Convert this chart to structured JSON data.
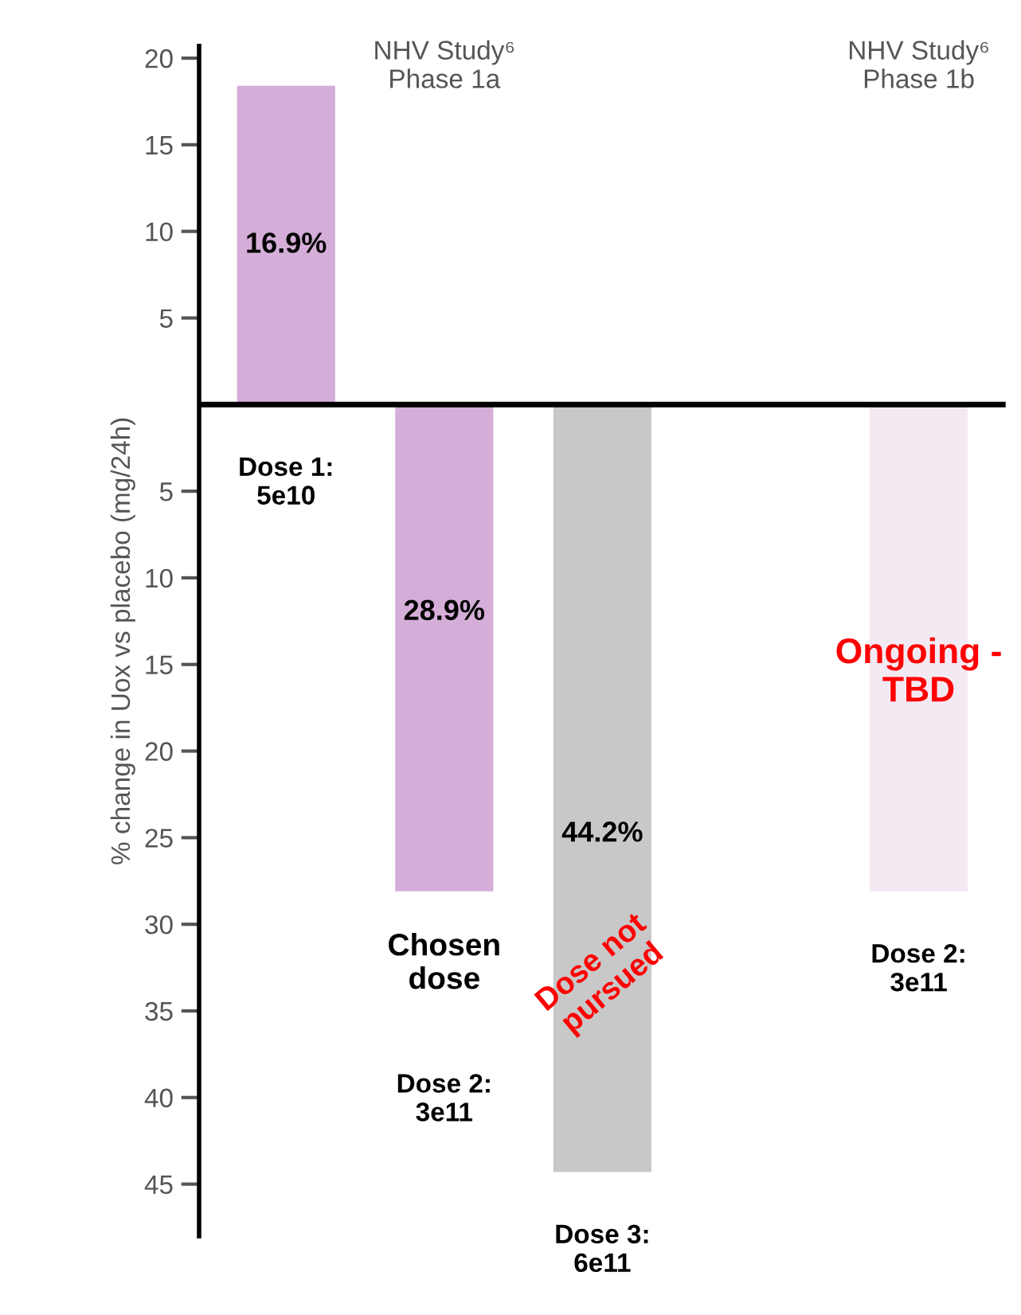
{
  "chart_data": {
    "type": "bar",
    "ylabel": "% change in Uox vs placebo (mg/24h)",
    "categories": [
      "Dose 1:\n5e10",
      "Dose 2:\n3e11",
      "Dose 3:\n6e11",
      null,
      "Dose 2:\n3e11"
    ],
    "values": [
      18.4,
      -28.1,
      -44.3,
      null,
      -28.1
    ],
    "colors": [
      "#d4aed8",
      "#d4aed8",
      "#c8c8c8",
      null,
      "#f3e9f3"
    ],
    "ylim": [
      -48,
      20.7
    ],
    "yticks": [
      {
        "value": -45,
        "label": "45"
      },
      {
        "value": -40,
        "label": "40"
      },
      {
        "value": -35,
        "label": "35"
      },
      {
        "value": -30,
        "label": "30"
      },
      {
        "value": -25,
        "label": "25"
      },
      {
        "value": -20,
        "label": "20"
      },
      {
        "value": -15,
        "label": "15"
      },
      {
        "value": -10,
        "label": "10"
      },
      {
        "value": -5,
        "label": "5"
      },
      5,
      10,
      15,
      20
    ],
    "grid": false,
    "legend": false,
    "annotations": [
      "NHV Study⁶\nPhase 1a",
      "NHV Study⁶\nPhase 1b",
      "Chosen\ndose",
      "Dose not\npursued",
      "Ongoing -\nTBD",
      "16.9%",
      "28.9%",
      "44.2%"
    ]
  }
}
